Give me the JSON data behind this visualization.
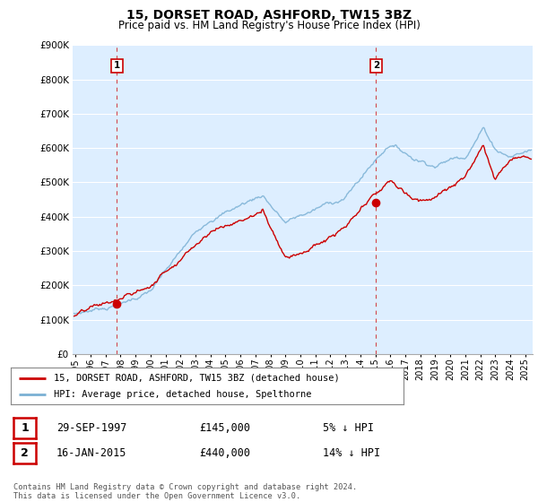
{
  "title": "15, DORSET ROAD, ASHFORD, TW15 3BZ",
  "subtitle": "Price paid vs. HM Land Registry's House Price Index (HPI)",
  "ylabel_ticks": [
    "£0",
    "£100K",
    "£200K",
    "£300K",
    "£400K",
    "£500K",
    "£600K",
    "£700K",
    "£800K",
    "£900K"
  ],
  "ylim": [
    0,
    900000
  ],
  "xlim_start": 1994.8,
  "xlim_end": 2025.5,
  "xticks": [
    1995,
    1996,
    1997,
    1998,
    1999,
    2000,
    2001,
    2002,
    2003,
    2004,
    2005,
    2006,
    2007,
    2008,
    2009,
    2010,
    2011,
    2012,
    2013,
    2014,
    2015,
    2016,
    2017,
    2018,
    2019,
    2020,
    2021,
    2022,
    2023,
    2024,
    2025
  ],
  "sale1_x": 1997.75,
  "sale1_y": 145000,
  "sale1_label": "1",
  "sale2_x": 2015.05,
  "sale2_y": 440000,
  "sale2_label": "2",
  "vline1_x": 1997.75,
  "vline2_x": 2015.05,
  "red_line_color": "#cc0000",
  "blue_line_color": "#7ab0d4",
  "vline_color": "#cc0000",
  "plot_bg_color": "#ddeeff",
  "legend_line1": "15, DORSET ROAD, ASHFORD, TW15 3BZ (detached house)",
  "legend_line2": "HPI: Average price, detached house, Spelthorne",
  "annotation1_date": "29-SEP-1997",
  "annotation1_price": "£145,000",
  "annotation1_hpi": "5% ↓ HPI",
  "annotation2_date": "16-JAN-2015",
  "annotation2_price": "£440,000",
  "annotation2_hpi": "14% ↓ HPI",
  "footer": "Contains HM Land Registry data © Crown copyright and database right 2024.\nThis data is licensed under the Open Government Licence v3.0.",
  "background_color": "#ffffff",
  "grid_color": "#ffffff"
}
